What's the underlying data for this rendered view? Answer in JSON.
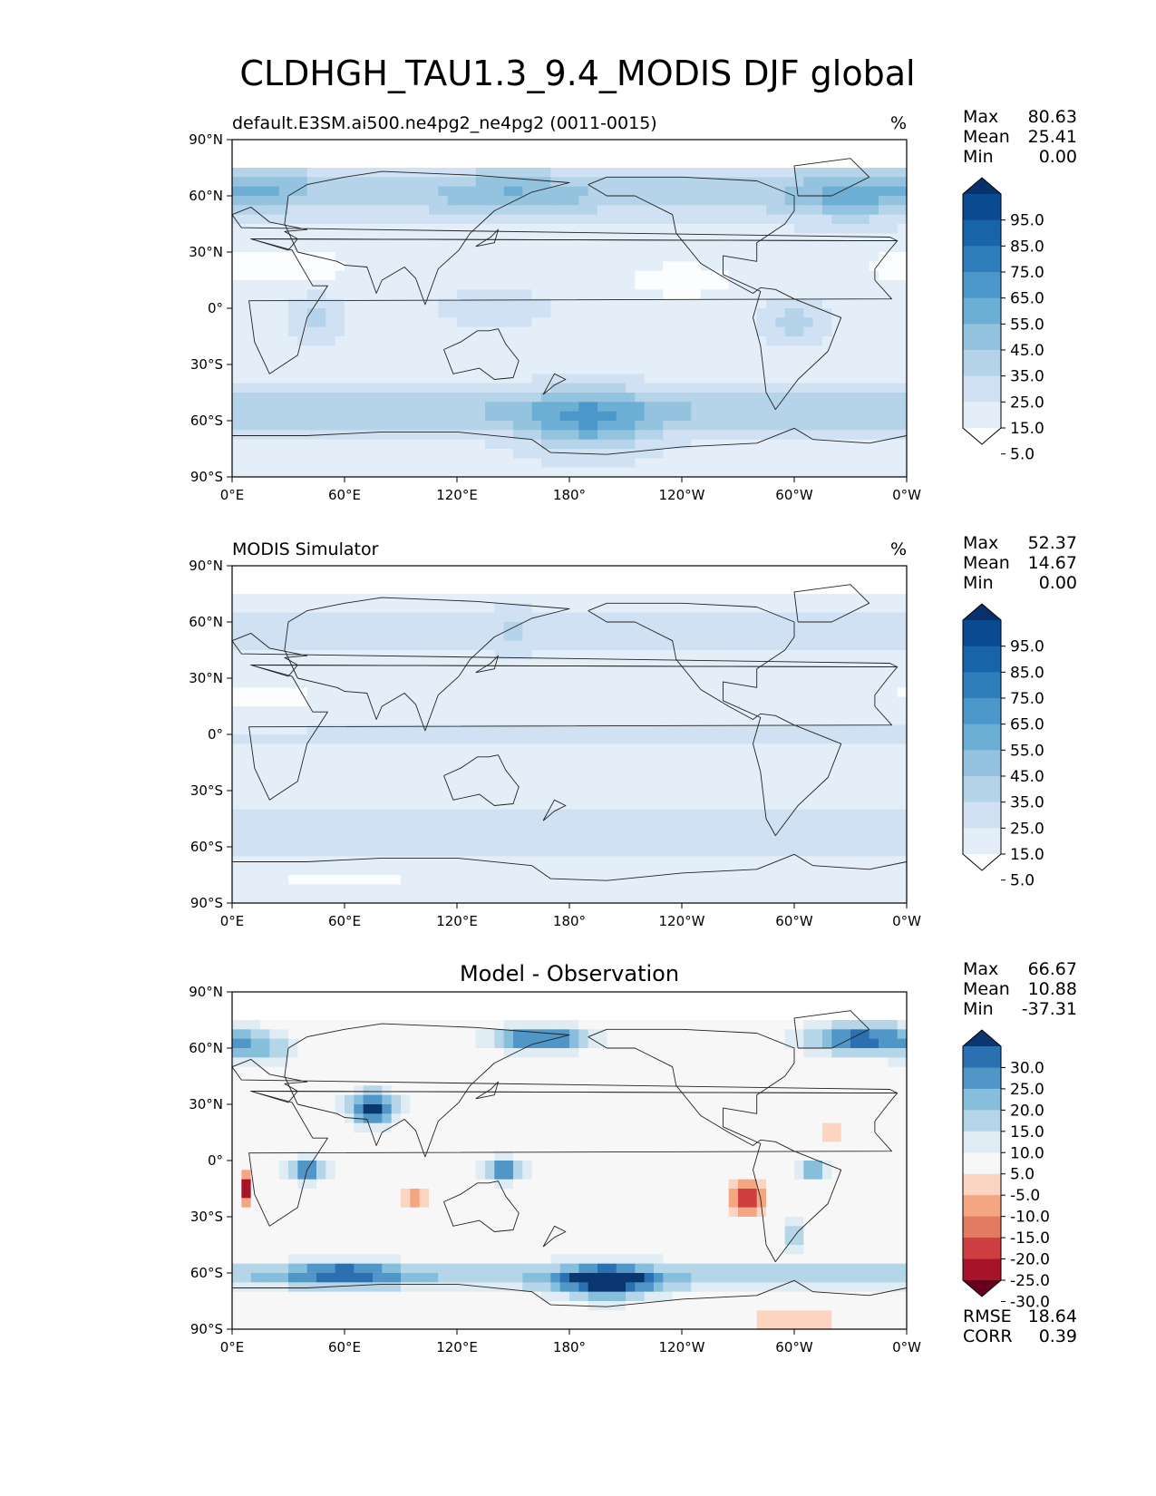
{
  "figure": {
    "title": "CLDHGH_TAU1.3_9.4_MODIS DJF global"
  },
  "panels": [
    {
      "left_title": "default.E3SM.ai500.ne4pg2_ne4pg2 (0011-0015)",
      "center_title": "",
      "units": "%",
      "stats": [
        {
          "label": "Max",
          "value": "80.63"
        },
        {
          "label": "Mean",
          "value": "25.41"
        },
        {
          "label": "Min",
          "value": "0.00"
        }
      ],
      "colorbar": {
        "extend": "both",
        "colors": [
          "#fbfdff",
          "#e3eef9",
          "#cfe1f2",
          "#b5d4e9",
          "#93c3df",
          "#6daed5",
          "#4b97c9",
          "#2f7ebc",
          "#1864aa",
          "#0a4a90",
          "#08306b"
        ],
        "ticks": [
          "95.0",
          "85.0",
          "75.0",
          "65.0",
          "55.0",
          "45.0",
          "35.0",
          "25.0",
          "15.0",
          "5.0"
        ]
      },
      "extra_stats": []
    },
    {
      "left_title": "MODIS Simulator",
      "center_title": "",
      "units": "%",
      "stats": [
        {
          "label": "Max",
          "value": "52.37"
        },
        {
          "label": "Mean",
          "value": "14.67"
        },
        {
          "label": "Min",
          "value": "0.00"
        }
      ],
      "colorbar": {
        "extend": "both",
        "colors": [
          "#fbfdff",
          "#e3eef9",
          "#cfe1f2",
          "#b5d4e9",
          "#93c3df",
          "#6daed5",
          "#4b97c9",
          "#2f7ebc",
          "#1864aa",
          "#0a4a90",
          "#08306b"
        ],
        "ticks": [
          "95.0",
          "85.0",
          "75.0",
          "65.0",
          "55.0",
          "45.0",
          "35.0",
          "25.0",
          "15.0",
          "5.0"
        ]
      },
      "extra_stats": []
    },
    {
      "left_title": "",
      "center_title": "Model - Observation",
      "units": "",
      "stats": [
        {
          "label": "Max",
          "value": "66.67"
        },
        {
          "label": "Mean",
          "value": "10.88"
        },
        {
          "label": "Min",
          "value": "-37.31"
        }
      ],
      "colorbar": {
        "extend": "both",
        "colors": [
          "#67001f",
          "#a51429",
          "#cd3f41",
          "#e27a62",
          "#f4a683",
          "#fbd5c1",
          "#f7f7f7",
          "#dfecf4",
          "#b5d6e8",
          "#87bedc",
          "#5096c6",
          "#2b70b0",
          "#0a3770"
        ],
        "ticks": [
          "30.0",
          "25.0",
          "20.0",
          "15.0",
          "10.0",
          "5.0",
          "-5.0",
          "-10.0",
          "-15.0",
          "-20.0",
          "-25.0",
          "-30.0"
        ]
      },
      "extra_stats": [
        {
          "label": "RMSE",
          "value": "18.64"
        },
        {
          "label": "CORR",
          "value": "0.39"
        }
      ]
    }
  ],
  "chart_data": [
    {
      "type": "heatmap",
      "title": "default.E3SM.ai500.ne4pg2_ne4pg2 (0011-0015)",
      "units": "%",
      "x_ticks": [
        "0°E",
        "60°E",
        "120°E",
        "180°",
        "120°W",
        "60°W",
        "0°W"
      ],
      "y_ticks": [
        "90°N",
        "60°N",
        "30°N",
        "0°",
        "30°S",
        "60°S",
        "90°S"
      ],
      "xlim": [
        0,
        360
      ],
      "ylim": [
        -90,
        90
      ],
      "levels": [
        5,
        15,
        25,
        35,
        45,
        55,
        65,
        75,
        85,
        95
      ],
      "stats": {
        "max": 80.63,
        "mean": 25.41,
        "min": 0.0
      },
      "field_kind": "model"
    },
    {
      "type": "heatmap",
      "title": "MODIS Simulator",
      "units": "%",
      "x_ticks": [
        "0°E",
        "60°E",
        "120°E",
        "180°",
        "120°W",
        "60°W",
        "0°W"
      ],
      "y_ticks": [
        "90°N",
        "60°N",
        "30°N",
        "0°",
        "30°S",
        "60°S",
        "90°S"
      ],
      "xlim": [
        0,
        360
      ],
      "ylim": [
        -90,
        90
      ],
      "levels": [
        5,
        15,
        25,
        35,
        45,
        55,
        65,
        75,
        85,
        95
      ],
      "stats": {
        "max": 52.37,
        "mean": 14.67,
        "min": 0.0
      },
      "field_kind": "obs"
    },
    {
      "type": "heatmap",
      "title": "Model - Observation",
      "units": "",
      "x_ticks": [
        "0°E",
        "60°E",
        "120°E",
        "180°",
        "120°W",
        "60°W",
        "0°W"
      ],
      "y_ticks": [
        "90°N",
        "60°N",
        "30°N",
        "0°",
        "30°S",
        "60°S",
        "90°S"
      ],
      "xlim": [
        0,
        360
      ],
      "ylim": [
        -90,
        90
      ],
      "levels": [
        -30,
        -25,
        -20,
        -15,
        -10,
        -5,
        5,
        10,
        15,
        20,
        25,
        30
      ],
      "stats": {
        "max": 66.67,
        "mean": 10.88,
        "min": -37.31,
        "rmse": 18.64,
        "corr": 0.39
      },
      "field_kind": "diff"
    }
  ]
}
